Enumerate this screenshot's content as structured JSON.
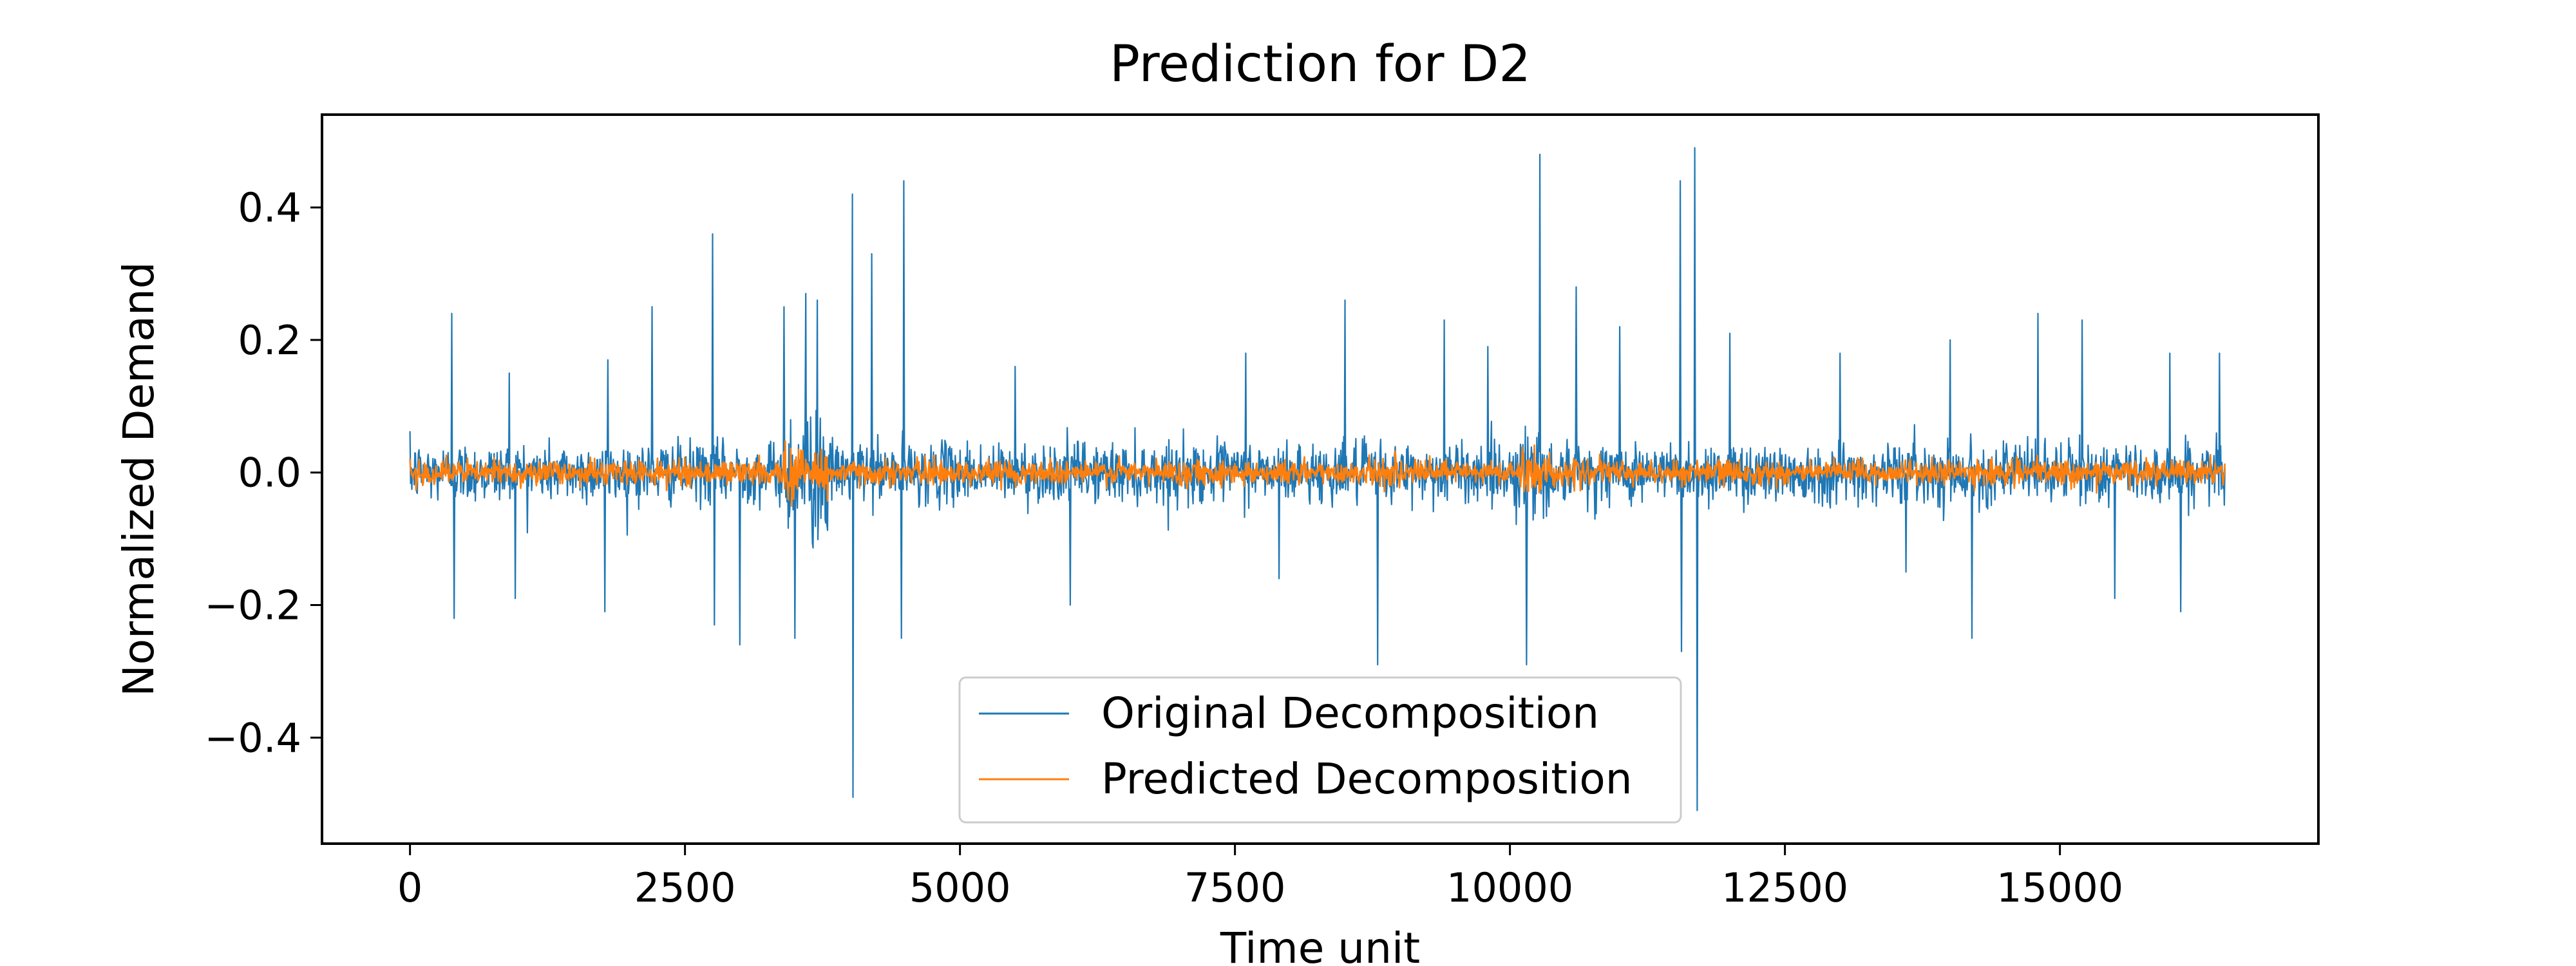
{
  "chart_data": {
    "type": "line",
    "title": "Prediction for D2",
    "xlabel": "Time unit",
    "ylabel": "Normalized Demand",
    "xlim": [
      -800,
      17350
    ],
    "ylim": [
      -0.56,
      0.54
    ],
    "x_ticks": [
      0,
      2500,
      5000,
      7500,
      10000,
      12500,
      15000
    ],
    "x_tick_labels": [
      "0",
      "2500",
      "5000",
      "7500",
      "10000",
      "12500",
      "15000"
    ],
    "y_ticks": [
      0.4,
      0.2,
      0.0,
      -0.2,
      -0.4
    ],
    "y_tick_labels": [
      "0.4",
      "0.2",
      "0.0",
      "−0.2",
      "−0.4"
    ],
    "grid": false,
    "legend_position": "lower-center",
    "n_points": 16500,
    "series": [
      {
        "name": "Original Decomposition",
        "color": "#1f77b4",
        "x_range": [
          0,
          16500
        ],
        "baseline_amplitude": 0.03,
        "outliers": [
          [
            380,
            0.24
          ],
          [
            400,
            -0.22
          ],
          [
            900,
            0.15
          ],
          [
            960,
            -0.19
          ],
          [
            1800,
            0.17
          ],
          [
            1770,
            -0.21
          ],
          [
            2200,
            0.25
          ],
          [
            2750,
            0.36
          ],
          [
            2770,
            -0.23
          ],
          [
            3000,
            -0.26
          ],
          [
            3400,
            0.25
          ],
          [
            3500,
            -0.25
          ],
          [
            3600,
            0.27
          ],
          [
            3700,
            0.26
          ],
          [
            4020,
            0.42
          ],
          [
            4030,
            -0.49
          ],
          [
            4200,
            0.33
          ],
          [
            4490,
            0.44
          ],
          [
            4470,
            -0.25
          ],
          [
            5500,
            0.16
          ],
          [
            6000,
            -0.2
          ],
          [
            7600,
            0.18
          ],
          [
            7900,
            -0.16
          ],
          [
            8500,
            0.26
          ],
          [
            8800,
            -0.29
          ],
          [
            9400,
            0.23
          ],
          [
            9800,
            0.19
          ],
          [
            10150,
            -0.29
          ],
          [
            10270,
            0.48
          ],
          [
            10600,
            0.28
          ],
          [
            11000,
            0.22
          ],
          [
            11550,
            0.44
          ],
          [
            11560,
            -0.27
          ],
          [
            11680,
            0.49
          ],
          [
            11700,
            -0.51
          ],
          [
            12000,
            0.21
          ],
          [
            13000,
            0.18
          ],
          [
            13600,
            -0.15
          ],
          [
            14000,
            0.2
          ],
          [
            14200,
            -0.25
          ],
          [
            14800,
            0.24
          ],
          [
            15200,
            0.23
          ],
          [
            15500,
            -0.19
          ],
          [
            16000,
            0.18
          ],
          [
            16100,
            -0.21
          ],
          [
            16450,
            0.18
          ]
        ]
      },
      {
        "name": "Predicted Decomposition",
        "color": "#ff7f0e",
        "x_range": [
          0,
          16500
        ],
        "baseline_amplitude": 0.012
      }
    ]
  }
}
